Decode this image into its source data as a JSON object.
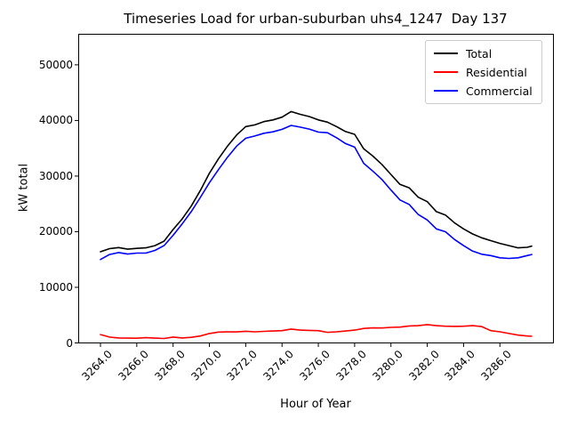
{
  "chart_data": {
    "type": "line",
    "title": "Timeseries Load for urban-suburban uhs4_1247  Day 137",
    "xlabel": "Hour of Year",
    "ylabel": "kW total",
    "xlim": [
      3262.8,
      3288.95
    ],
    "ylim": [
      0,
      55500
    ],
    "grid": false,
    "legend": {
      "position": "upper right",
      "entries": [
        "Total",
        "Residential",
        "Commercial"
      ]
    },
    "x_tick_values": [
      3264,
      3266,
      3268,
      3270,
      3272,
      3274,
      3276,
      3278,
      3280,
      3282,
      3284,
      3286
    ],
    "x_tick_labels": [
      "3264.0",
      "3266.0",
      "3268.0",
      "3270.0",
      "3272.0",
      "3274.0",
      "3276.0",
      "3278.0",
      "3280.0",
      "3282.0",
      "3284.0",
      "3286.0"
    ],
    "y_tick_values": [
      0,
      10000,
      20000,
      30000,
      40000,
      50000
    ],
    "y_tick_labels": [
      "0",
      "10000",
      "20000",
      "30000",
      "40000",
      "50000"
    ],
    "x": [
      3264.0,
      3264.5,
      3265.0,
      3265.5,
      3266.0,
      3266.5,
      3267.0,
      3267.5,
      3268.0,
      3268.5,
      3269.0,
      3269.5,
      3270.0,
      3270.5,
      3271.0,
      3271.5,
      3272.0,
      3272.5,
      3273.0,
      3273.5,
      3274.0,
      3274.5,
      3275.0,
      3275.5,
      3276.0,
      3276.5,
      3277.0,
      3277.5,
      3278.0,
      3278.5,
      3279.0,
      3279.5,
      3280.0,
      3280.5,
      3281.0,
      3281.5,
      3282.0,
      3282.5,
      3283.0,
      3283.5,
      3284.0,
      3284.5,
      3285.0,
      3285.5,
      3286.0,
      3286.5,
      3287.0,
      3287.5,
      3287.75
    ],
    "series": [
      {
        "name": "Total",
        "color": "#000000",
        "values": [
          16400,
          16950,
          17150,
          16850,
          17000,
          17100,
          17500,
          18300,
          20400,
          22300,
          24600,
          27400,
          30500,
          33100,
          35400,
          37400,
          38900,
          39200,
          39800,
          40100,
          40600,
          41600,
          41100,
          40700,
          40100,
          39700,
          38900,
          38000,
          37500,
          34900,
          33600,
          32100,
          30300,
          28500,
          27900,
          26200,
          25400,
          23600,
          23000,
          21600,
          20500,
          19600,
          18900,
          18400,
          17900,
          17500,
          17100,
          17200,
          17400
        ]
      },
      {
        "name": "Residential",
        "color": "#ff0000",
        "values": [
          1500,
          1050,
          900,
          870,
          850,
          950,
          860,
          800,
          1050,
          900,
          1000,
          1250,
          1700,
          1950,
          2000,
          1980,
          2100,
          2000,
          2080,
          2150,
          2200,
          2500,
          2300,
          2250,
          2200,
          1900,
          2000,
          2150,
          2300,
          2600,
          2700,
          2680,
          2800,
          2850,
          3050,
          3100,
          3300,
          3100,
          3000,
          2980,
          3000,
          3100,
          2950,
          2200,
          2000,
          1700,
          1400,
          1250,
          1200
        ]
      },
      {
        "name": "Commercial",
        "color": "#0000ff",
        "values": [
          15000,
          15900,
          16250,
          15980,
          16150,
          16150,
          16640,
          17500,
          19350,
          21400,
          23600,
          26150,
          28800,
          31150,
          33400,
          35400,
          36800,
          37200,
          37700,
          37950,
          38400,
          39100,
          38800,
          38450,
          37900,
          37800,
          36900,
          35850,
          35200,
          32300,
          30900,
          29400,
          27500,
          25700,
          24900,
          23100,
          22100,
          20500,
          20000,
          18600,
          17500,
          16500,
          15950,
          15700,
          15300,
          15200,
          15300,
          15700,
          15900
        ]
      }
    ]
  }
}
